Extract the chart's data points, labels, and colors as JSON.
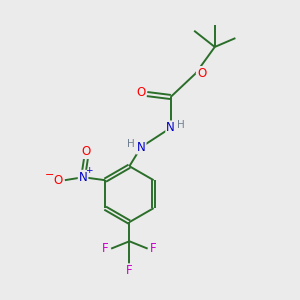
{
  "bg_color": "#ebebeb",
  "bond_color": "#2a6e2a",
  "atom_colors": {
    "O": "#ff0000",
    "N": "#0000cc",
    "F": "#cc00cc",
    "H": "#708090",
    "C": "#000000"
  }
}
